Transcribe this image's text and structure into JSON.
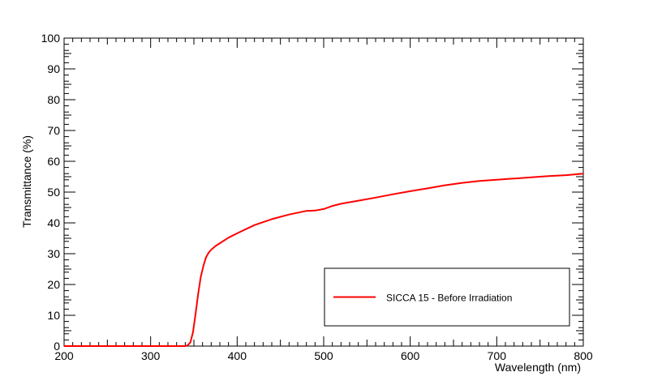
{
  "chart_data": {
    "type": "line",
    "title": "",
    "xlabel": "Wavelength (nm)",
    "ylabel": "Transmittance (%)",
    "xlim": [
      200,
      800
    ],
    "ylim": [
      0,
      100
    ],
    "x_ticks": [
      200,
      300,
      400,
      500,
      600,
      700,
      800
    ],
    "y_ticks": [
      0,
      10,
      20,
      30,
      40,
      50,
      60,
      70,
      80,
      90,
      100
    ],
    "grid": false,
    "legend_position": "bottom-right",
    "series": [
      {
        "name": "SICCA 15 - Before Irradiation",
        "color": "#ff0000",
        "x": [
          200,
          250,
          300,
          330,
          340,
          343,
          346,
          349,
          352,
          355,
          358,
          361,
          364,
          367,
          370,
          375,
          380,
          390,
          400,
          420,
          440,
          460,
          480,
          490,
          500,
          510,
          520,
          540,
          560,
          580,
          600,
          620,
          640,
          660,
          680,
          700,
          720,
          740,
          760,
          780,
          800
        ],
        "y": [
          0,
          0,
          0,
          0,
          0,
          0.3,
          1.2,
          4.5,
          10.5,
          17,
          22.5,
          26,
          28.8,
          30.3,
          31.3,
          32.5,
          33.4,
          35.2,
          36.6,
          39.3,
          41.2,
          42.7,
          43.9,
          44,
          44.5,
          45.5,
          46.2,
          47.2,
          48.2,
          49.3,
          50.3,
          51.2,
          52.2,
          53,
          53.6,
          54,
          54.4,
          54.8,
          55.2,
          55.5,
          56
        ]
      }
    ]
  }
}
